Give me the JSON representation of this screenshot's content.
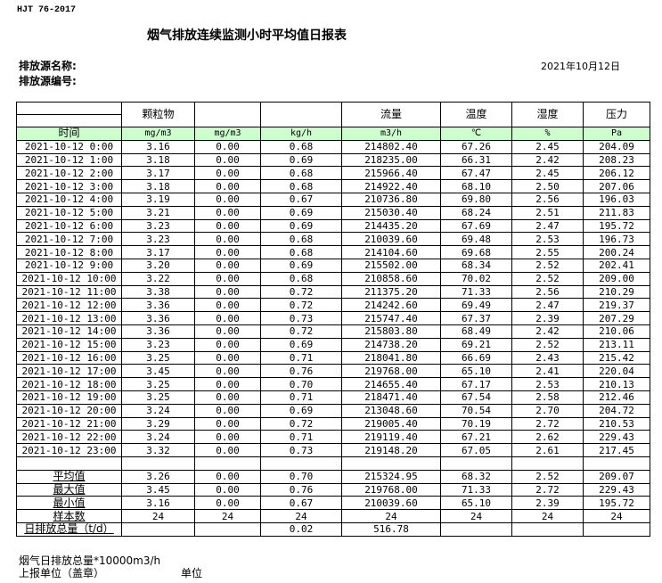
{
  "standard": "HJT  76-2017",
  "title": "烟气排放连续监测小时平均值日报表",
  "source_name_label": "排放源名称:",
  "source_code_label": "排放源编号:",
  "date": "2021年10月12日",
  "headers": [
    "",
    "颗粒物",
    "",
    "",
    "流量",
    "温度",
    "湿度",
    "压力"
  ],
  "units": [
    "时间",
    "mg/m3",
    "mg/m3",
    "kg/h",
    "m3/h",
    "℃",
    "%",
    "Pa"
  ],
  "rows": [
    [
      "2021-10-12 0:00",
      "3.16",
      "0.00",
      "0.68",
      "214802.40",
      "67.26",
      "2.45",
      "204.09"
    ],
    [
      "2021-10-12 1:00",
      "3.18",
      "0.00",
      "0.69",
      "218235.00",
      "66.31",
      "2.42",
      "208.23"
    ],
    [
      "2021-10-12 2:00",
      "3.17",
      "0.00",
      "0.68",
      "215966.40",
      "67.47",
      "2.45",
      "206.12"
    ],
    [
      "2021-10-12 3:00",
      "3.18",
      "0.00",
      "0.68",
      "214922.40",
      "68.10",
      "2.50",
      "207.06"
    ],
    [
      "2021-10-12 4:00",
      "3.19",
      "0.00",
      "0.67",
      "210736.80",
      "69.80",
      "2.56",
      "196.03"
    ],
    [
      "2021-10-12 5:00",
      "3.21",
      "0.00",
      "0.69",
      "215030.40",
      "68.24",
      "2.51",
      "211.83"
    ],
    [
      "2021-10-12 6:00",
      "3.23",
      "0.00",
      "0.69",
      "214435.20",
      "67.69",
      "2.47",
      "195.72"
    ],
    [
      "2021-10-12 7:00",
      "3.23",
      "0.00",
      "0.68",
      "210039.60",
      "69.48",
      "2.53",
      "196.73"
    ],
    [
      "2021-10-12 8:00",
      "3.17",
      "0.00",
      "0.68",
      "214104.60",
      "69.68",
      "2.55",
      "200.24"
    ],
    [
      "2021-10-12 9:00",
      "3.20",
      "0.00",
      "0.69",
      "215502.00",
      "68.34",
      "2.52",
      "202.41"
    ],
    [
      "2021-10-12 10:00",
      "3.22",
      "0.00",
      "0.68",
      "210858.60",
      "70.02",
      "2.52",
      "209.00"
    ],
    [
      "2021-10-12 11:00",
      "3.38",
      "0.00",
      "0.72",
      "211375.20",
      "71.33",
      "2.56",
      "210.29"
    ],
    [
      "2021-10-12 12:00",
      "3.36",
      "0.00",
      "0.72",
      "214242.60",
      "69.49",
      "2.47",
      "219.37"
    ],
    [
      "2021-10-12 13:00",
      "3.36",
      "0.00",
      "0.73",
      "215747.40",
      "67.37",
      "2.39",
      "207.29"
    ],
    [
      "2021-10-12 14:00",
      "3.36",
      "0.00",
      "0.72",
      "215803.80",
      "68.49",
      "2.42",
      "210.06"
    ],
    [
      "2021-10-12 15:00",
      "3.23",
      "0.00",
      "0.69",
      "214738.20",
      "69.21",
      "2.52",
      "213.11"
    ],
    [
      "2021-10-12 16:00",
      "3.25",
      "0.00",
      "0.71",
      "218041.80",
      "66.69",
      "2.43",
      "215.42"
    ],
    [
      "2021-10-12 17:00",
      "3.45",
      "0.00",
      "0.76",
      "219768.00",
      "65.10",
      "2.41",
      "220.04"
    ],
    [
      "2021-10-12 18:00",
      "3.25",
      "0.00",
      "0.70",
      "214655.40",
      "67.17",
      "2.53",
      "210.13"
    ],
    [
      "2021-10-12 19:00",
      "3.25",
      "0.00",
      "0.71",
      "218471.40",
      "67.54",
      "2.58",
      "212.46"
    ],
    [
      "2021-10-12 20:00",
      "3.24",
      "0.00",
      "0.69",
      "213048.60",
      "70.54",
      "2.70",
      "204.72"
    ],
    [
      "2021-10-12 21:00",
      "3.29",
      "0.00",
      "0.72",
      "219005.40",
      "70.19",
      "2.72",
      "210.53"
    ],
    [
      "2021-10-12 22:00",
      "3.24",
      "0.00",
      "0.71",
      "219119.40",
      "67.21",
      "2.62",
      "229.43"
    ],
    [
      "2021-10-12 23:00",
      "3.32",
      "0.00",
      "0.73",
      "219148.20",
      "67.05",
      "2.61",
      "217.45"
    ]
  ],
  "stats": [
    [
      "平均值",
      "3.26",
      "0.00",
      "0.70",
      "215324.95",
      "68.32",
      "2.52",
      "209.07"
    ],
    [
      "最大值",
      "3.45",
      "0.00",
      "0.76",
      "219768.00",
      "71.33",
      "2.72",
      "229.43"
    ],
    [
      "最小值",
      "3.16",
      "0.00",
      "0.67",
      "210039.60",
      "65.10",
      "2.39",
      "195.72"
    ],
    [
      "样本数",
      "24",
      "24",
      "24",
      "24",
      "24",
      "24",
      "24"
    ],
    [
      "日排放总量（t/d）",
      "",
      "",
      "0.02",
      "516.78",
      "",
      "",
      ""
    ]
  ],
  "footer": {
    "flue_total": "烟气日排放总量*10000m3/h",
    "reporting_unit": "上报单位（盖章）",
    "unit": "单位"
  }
}
